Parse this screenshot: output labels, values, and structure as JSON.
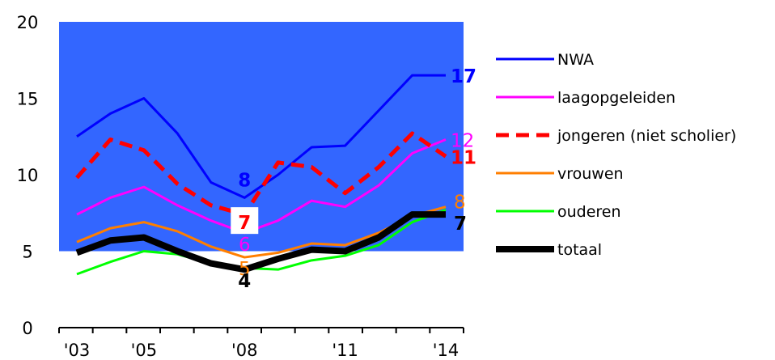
{
  "chart_data": {
    "type": "line",
    "x": [
      2003,
      2004,
      2005,
      2006,
      2007,
      2008,
      2009,
      2010,
      2011,
      2012,
      2013,
      2014
    ],
    "xtick_labels": [
      "'03",
      "'05",
      "'08",
      "'11",
      "'14"
    ],
    "xtick_values": [
      2003,
      2005,
      2008,
      2011,
      2014
    ],
    "ylim": [
      0,
      20
    ],
    "yticks": [
      "0",
      "5",
      "10",
      "15",
      "20"
    ],
    "xlabel": "",
    "ylabel": "",
    "title": "",
    "legend_position": "right",
    "plot_background": "#3366ff",
    "series": [
      {
        "name": "NWA",
        "color": "#0000ff",
        "style": "solid",
        "values": [
          12.5,
          14.0,
          15.0,
          12.7,
          9.5,
          8.5,
          10.0,
          11.8,
          11.9,
          14.2,
          16.5,
          16.5
        ],
        "labels": [
          {
            "x": 2008,
            "y": 8,
            "text": "8",
            "bold": true,
            "pos": "above"
          },
          {
            "x": 2014,
            "y": 17,
            "text": "17",
            "bold": true,
            "pos": "right"
          }
        ]
      },
      {
        "name": "laagopgeleiden",
        "color": "#ff00ff",
        "style": "solid",
        "values": [
          7.4,
          8.5,
          9.2,
          8.0,
          7.0,
          6.2,
          7.0,
          8.3,
          7.9,
          9.3,
          11.4,
          12.3
        ],
        "labels": [
          {
            "x": 2008,
            "y": 6,
            "text": "6",
            "bold": false,
            "pos": "below"
          },
          {
            "x": 2014,
            "y": 12,
            "text": "12",
            "bold": false,
            "pos": "right"
          }
        ]
      },
      {
        "name": "jongeren (niet scholier)",
        "color": "#ff0000",
        "style": "dashed",
        "values": [
          9.8,
          12.3,
          11.6,
          9.4,
          8.0,
          7.4,
          10.8,
          10.5,
          8.8,
          10.5,
          12.7,
          11.2
        ],
        "labels": [
          {
            "x": 2008,
            "y": 7,
            "text": "7",
            "bold": true,
            "pos": "box"
          },
          {
            "x": 2014,
            "y": 11,
            "text": "11",
            "bold": true,
            "pos": "right"
          }
        ]
      },
      {
        "name": "vrouwen",
        "color": "#ff7f00",
        "style": "solid",
        "values": [
          5.6,
          6.5,
          6.9,
          6.3,
          5.3,
          4.6,
          4.9,
          5.5,
          5.4,
          6.2,
          7.3,
          7.9
        ],
        "labels": [
          {
            "x": 2008,
            "y": 5,
            "text": "5",
            "bold": false,
            "pos": "below"
          },
          {
            "x": 2014,
            "y": 8,
            "text": "8",
            "bold": false,
            "pos": "right-up"
          }
        ]
      },
      {
        "name": "ouderen",
        "color": "#00ff00",
        "style": "solid",
        "values": [
          3.5,
          4.3,
          5.0,
          4.8,
          4.2,
          3.9,
          3.8,
          4.4,
          4.7,
          5.4,
          6.9,
          7.7
        ],
        "labels": []
      },
      {
        "name": "totaal",
        "color": "#000000",
        "style": "thick",
        "values": [
          4.9,
          5.7,
          5.9,
          5.0,
          4.2,
          3.8,
          4.5,
          5.1,
          5.0,
          5.9,
          7.4,
          7.4
        ],
        "labels": [
          {
            "x": 2008,
            "y": 4,
            "text": "4",
            "bold": true,
            "pos": "below"
          },
          {
            "x": 2014,
            "y": 7,
            "text": "7",
            "bold": true,
            "pos": "right-down"
          }
        ]
      }
    ]
  }
}
